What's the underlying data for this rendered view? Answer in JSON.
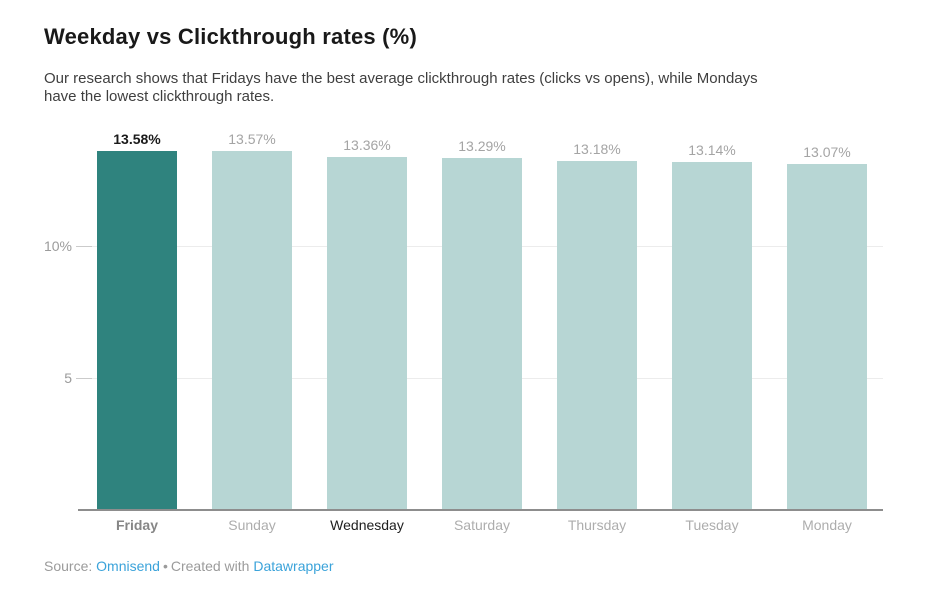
{
  "header": {
    "title": "Weekday vs Clickthrough rates (%)",
    "subtitle_lines": [
      "Our research shows that Fridays have the best average clickthrough rates (clicks vs opens), while Mondays",
      "have the lowest clickthrough rates."
    ]
  },
  "chart_data": {
    "type": "bar",
    "title": "Weekday vs Clickthrough rates (%)",
    "categories": [
      "Friday",
      "Sunday",
      "Wednesday",
      "Saturday",
      "Thursday",
      "Tuesday",
      "Monday"
    ],
    "values": [
      13.58,
      13.57,
      13.36,
      13.29,
      13.18,
      13.14,
      13.07
    ],
    "value_labels": [
      "13.58%",
      "13.57%",
      "13.36%",
      "13.29%",
      "13.18%",
      "13.14%",
      "13.07%"
    ],
    "category_label_styles": [
      "highlight",
      "muted",
      "dark",
      "muted",
      "muted",
      "muted",
      "muted"
    ],
    "highlight_index": 0,
    "xlabel": "",
    "ylabel": "",
    "ylim": [
      0,
      14
    ],
    "yticks": [
      {
        "value": 10,
        "label": "10%"
      },
      {
        "value": 5,
        "label": "5"
      }
    ],
    "grid": true,
    "legend": "none"
  },
  "colors": {
    "bar": "#b7d6d4",
    "bar_highlight": "#2f837e",
    "title": "#191919",
    "subtitle": "#3f3f3f",
    "grid": "#ececec",
    "tick": "#cbcbcb",
    "axis_label": "#9b9b9b",
    "baseline": "#8d8d8d",
    "value_label": "#a4a4a4",
    "value_label_highlight": "#1a1a1a",
    "day_label_muted": "#adadad",
    "day_label_highlight": "#868686",
    "day_label_dark": "#202020",
    "link": "#3ba3da",
    "footer_text": "#9b9b9b"
  },
  "footer": {
    "source_label": "Source:",
    "source_link": "Omnisend",
    "separator": "•",
    "created_with_label": "Created with",
    "tool_link": "Datawrapper"
  }
}
